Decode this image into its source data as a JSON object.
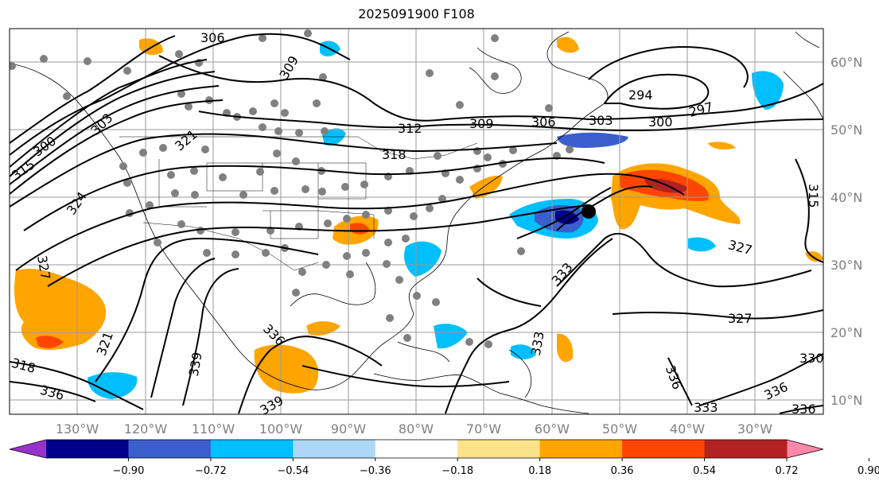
{
  "title": "2025091900 F108",
  "longitude_labels": [
    "130°W",
    "120°W",
    "110°W",
    "100°W",
    "90°W",
    "80°W",
    "70°W",
    "60°W",
    "50°W",
    "40°W",
    "30°W"
  ],
  "latitude_labels": [
    "60°N",
    "50°N",
    "40°N",
    "30°N",
    "20°N",
    "10°N"
  ],
  "contour_labels": [
    "306",
    "309",
    "312",
    "300",
    "303",
    "318",
    "321",
    "324",
    "327",
    "315",
    "294",
    "297",
    "309",
    "306",
    "303",
    "300",
    "321",
    "327",
    "330",
    "333",
    "336",
    "339",
    "318",
    "315",
    "336",
    "336",
    "336",
    "333",
    "327",
    "333",
    "339",
    "336"
  ],
  "colorbar": {
    "ticks": [
      "−0.90",
      "−0.72",
      "−0.54",
      "−0.36",
      "−0.18",
      "0.18",
      "0.36",
      "0.54",
      "0.72",
      "0.90"
    ],
    "colors": [
      "#9932cc",
      "#00008b",
      "#3a5fcd",
      "#00bfff",
      "#add8f5",
      "#ffffff",
      "#fce38a",
      "#ffa500",
      "#ff4500",
      "#b22222",
      "#ff88aa"
    ]
  },
  "colors": {
    "contour": "#000000",
    "grid": "#9a9a9a",
    "coast": "#000000",
    "station_dot": "#808080",
    "center_dot": "#000000"
  }
}
